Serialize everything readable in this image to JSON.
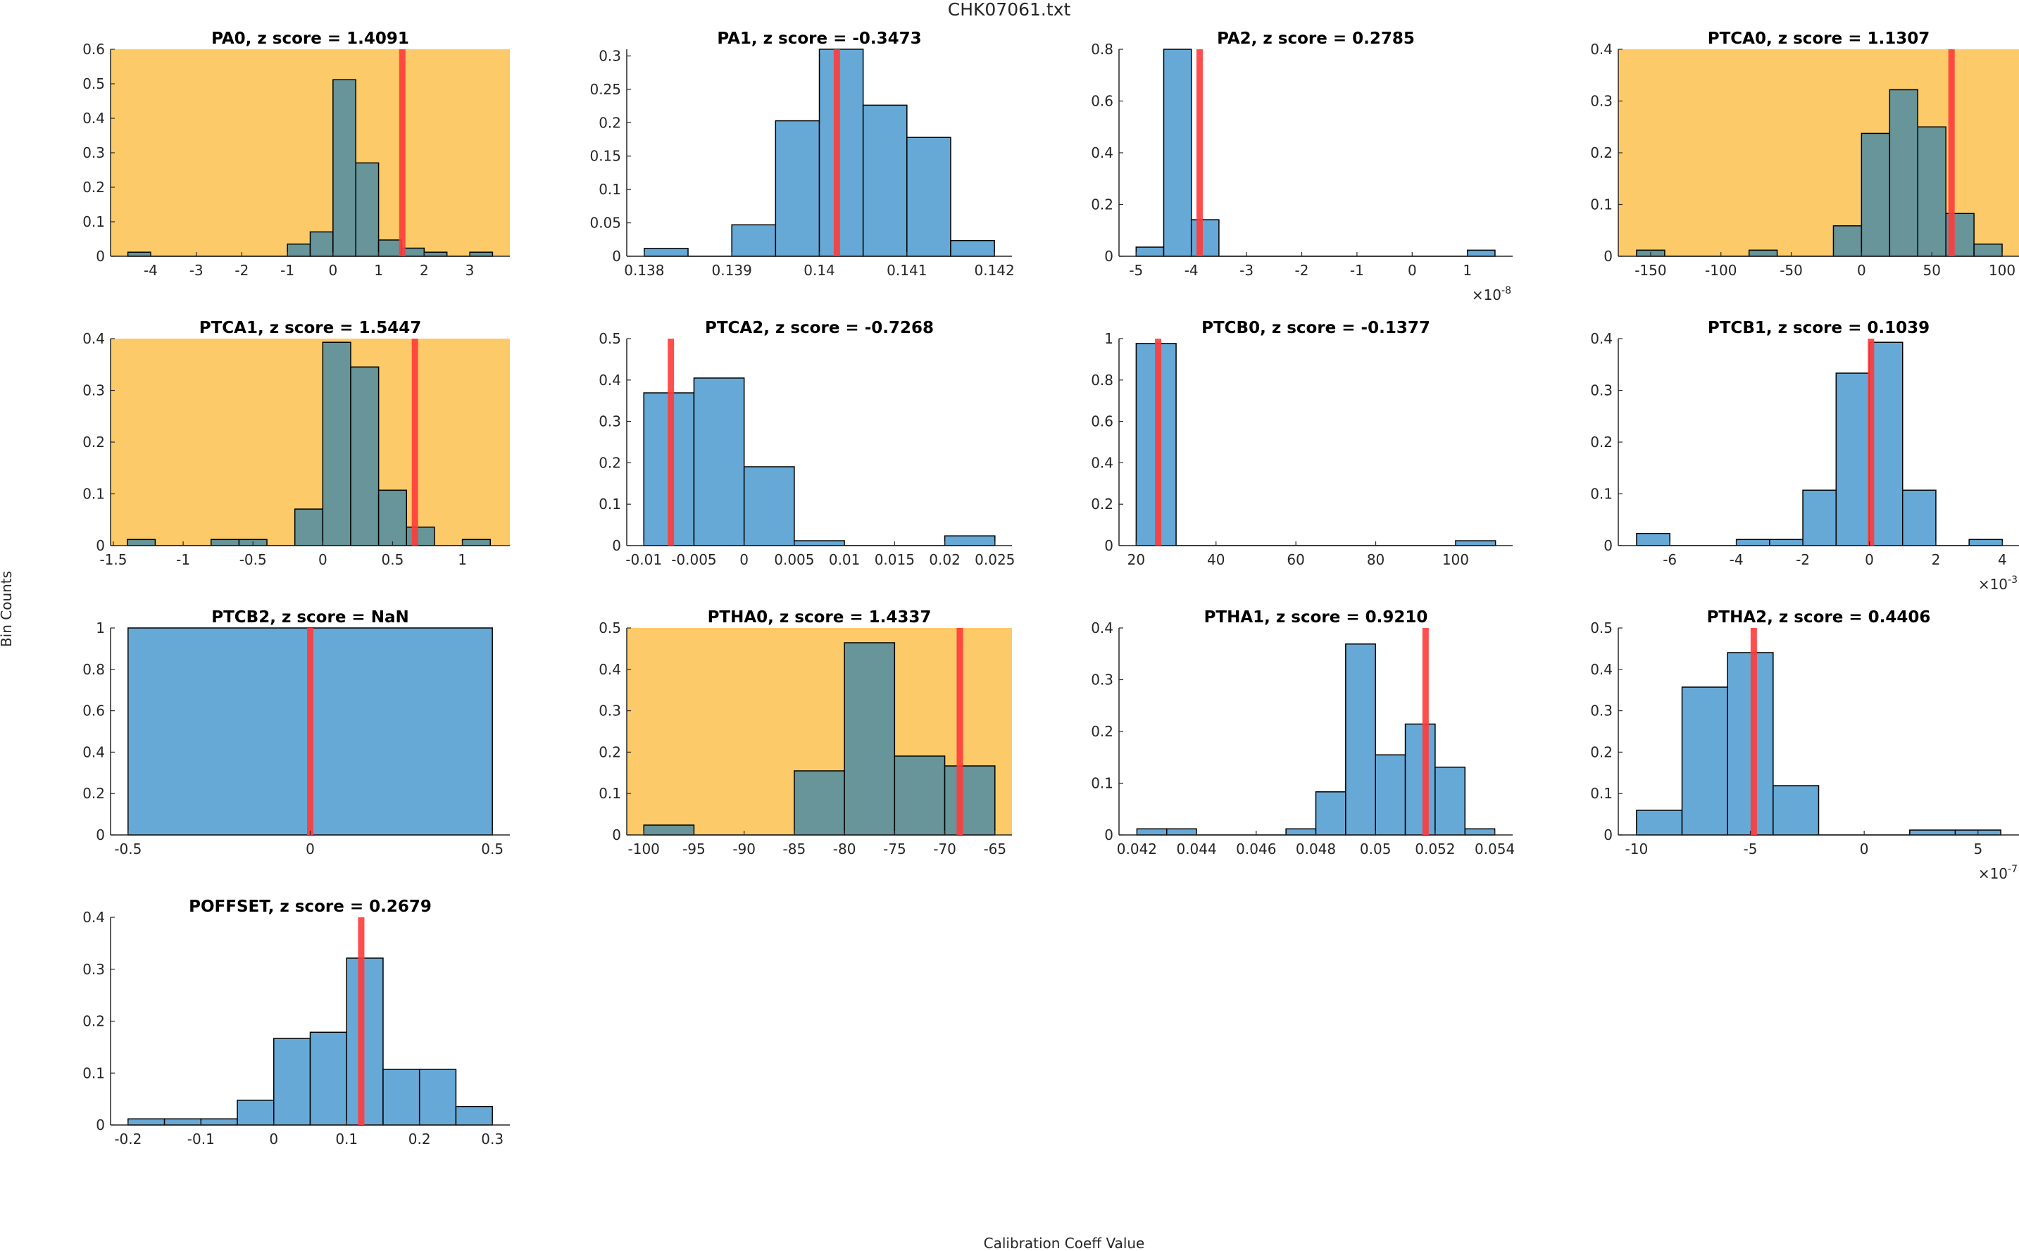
{
  "figure": {
    "title": "CHK07061.txt",
    "ylabel": "Bin Counts",
    "xlabel": "Calibration Coeff Value"
  },
  "colors": {
    "bar": "#67A9D6",
    "bar_on_highlight": "#679599",
    "highlight_bg": "#FDCA69",
    "marker": "#FF3B3B",
    "edge": "#000000",
    "axis": "#262626"
  },
  "chart_data": [
    {
      "type": "bar",
      "name": "PA0",
      "title": "PA0, z score = 1.4091",
      "z_score": 1.4091,
      "highlighted": true,
      "bin_start": -4.5,
      "bin_width": 0.5,
      "values": [
        0.0118,
        0,
        0,
        0,
        0,
        0,
        0,
        0.0353,
        0.0706,
        0.5118,
        0.2706,
        0.0471,
        0.0235,
        0.0118,
        0,
        0.0118
      ],
      "marker_x": 1.52,
      "xlim": [
        -4.88,
        3.88
      ],
      "ylim": [
        0,
        0.6
      ],
      "xticks": [
        -4,
        -3,
        -2,
        -1,
        0,
        1,
        2,
        3
      ],
      "xtick_labels": [
        "-4",
        "-3",
        "-2",
        "-1",
        "0",
        "1",
        "2",
        "3"
      ],
      "yticks": [
        0,
        0.1,
        0.2,
        0.3,
        0.4,
        0.5,
        0.6
      ],
      "ytick_labels": [
        "0",
        "0.1",
        "0.2",
        "0.3",
        "0.4",
        "0.5",
        "0.6"
      ],
      "exponent": ""
    },
    {
      "type": "bar",
      "name": "PA1",
      "title": "PA1, z score = -0.3473",
      "z_score": -0.3473,
      "highlighted": false,
      "bin_start": 0.138,
      "bin_width": 0.0005,
      "values": [
        0.0118,
        0,
        0.0471,
        0.2029,
        0.3101,
        0.2263,
        0.178,
        0.0235
      ],
      "marker_x": 0.1402,
      "xlim": [
        0.1378,
        0.1422
      ],
      "ylim": [
        0,
        0.31
      ],
      "xticks": [
        0.138,
        0.139,
        0.14,
        0.141,
        0.142
      ],
      "xtick_labels": [
        "0.138",
        "0.139",
        "0.14",
        "0.141",
        "0.142"
      ],
      "yticks": [
        0,
        0.05,
        0.1,
        0.15,
        0.2,
        0.25,
        0.3
      ],
      "ytick_labels": [
        "0",
        "0.05",
        "0.1",
        "0.15",
        "0.2",
        "0.25",
        "0.3"
      ],
      "exponent": ""
    },
    {
      "type": "bar",
      "name": "PA2",
      "title": "PA2, z score = 0.2785",
      "z_score": 0.2785,
      "highlighted": false,
      "bin_start": -5,
      "bin_width": 0.5,
      "values": [
        0.0353,
        0.8,
        0.1412,
        0,
        0,
        0,
        0,
        0,
        0,
        0,
        0,
        0,
        0.0235
      ],
      "marker_x": -3.85,
      "xlim": [
        -5.31,
        1.82
      ],
      "ylim": [
        0,
        0.8
      ],
      "xticks": [
        -5,
        -4,
        -3,
        -2,
        -1,
        0,
        1
      ],
      "xtick_labels": [
        "-5",
        "-4",
        "-3",
        "-2",
        "-1",
        "0",
        "1"
      ],
      "yticks": [
        0,
        0.2,
        0.4,
        0.6,
        0.8
      ],
      "ytick_labels": [
        "0",
        "0.2",
        "0.4",
        "0.6",
        "0.8"
      ],
      "exponent": "-8"
    },
    {
      "type": "bar",
      "name": "PTCA0",
      "title": "PTCA0, z score = 1.1307",
      "z_score": 1.1307,
      "highlighted": true,
      "bin_start": -160,
      "bin_width": 20,
      "values": [
        0.0118,
        0,
        0,
        0,
        0.0118,
        0,
        0,
        0.0588,
        0.2375,
        0.3218,
        0.25,
        0.0826,
        0.0235
      ],
      "marker_x": 64,
      "xlim": [
        -173,
        112
      ],
      "ylim": [
        0,
        0.4
      ],
      "xticks": [
        -150,
        -100,
        -50,
        0,
        50,
        100
      ],
      "xtick_labels": [
        "-150",
        "-100",
        "-50",
        "0",
        "50",
        "100"
      ],
      "yticks": [
        0,
        0.1,
        0.2,
        0.3,
        0.4
      ],
      "ytick_labels": [
        "0",
        "0.1",
        "0.2",
        "0.3",
        "0.4"
      ],
      "exponent": ""
    },
    {
      "type": "bar",
      "name": "PTCA1",
      "title": "PTCA1, z score = 1.5447",
      "z_score": 1.5447,
      "highlighted": true,
      "bin_start": -1.4,
      "bin_width": 0.2,
      "values": [
        0.0118,
        0,
        0,
        0.0118,
        0.0118,
        0,
        0.0706,
        0.3929,
        0.3452,
        0.1071,
        0.0357,
        0,
        0.0118
      ],
      "marker_x": 0.66,
      "xlim": [
        -1.52,
        1.34
      ],
      "ylim": [
        0,
        0.4
      ],
      "xticks": [
        -1.5,
        -1,
        -0.5,
        0,
        0.5,
        1
      ],
      "xtick_labels": [
        "-1.5",
        "-1",
        "-0.5",
        "0",
        "0.5",
        "1"
      ],
      "yticks": [
        0,
        0.1,
        0.2,
        0.3,
        0.4
      ],
      "ytick_labels": [
        "0",
        "0.1",
        "0.2",
        "0.3",
        "0.4"
      ],
      "exponent": ""
    },
    {
      "type": "bar",
      "name": "PTCA2",
      "title": "PTCA2, z score = -0.7268",
      "z_score": -0.7268,
      "highlighted": false,
      "bin_start": -0.01,
      "bin_width": 0.005,
      "values": [
        0.369,
        0.4048,
        0.1905,
        0.0118,
        0,
        0,
        0.0235
      ],
      "marker_x": -0.0073,
      "xlim": [
        -0.0117,
        0.0267
      ],
      "ylim": [
        0,
        0.5
      ],
      "xticks": [
        -0.01,
        -0.005,
        0,
        0.005,
        0.01,
        0.015,
        0.02,
        0.025
      ],
      "xtick_labels": [
        "-0.01",
        "-0.005",
        "0",
        "0.005",
        "0.01",
        "0.015",
        "0.02",
        "0.025"
      ],
      "yticks": [
        0,
        0.1,
        0.2,
        0.3,
        0.4,
        0.5
      ],
      "ytick_labels": [
        "0",
        "0.1",
        "0.2",
        "0.3",
        "0.4",
        "0.5"
      ],
      "exponent": ""
    },
    {
      "type": "bar",
      "name": "PTCB0",
      "title": "PTCB0, z score = -0.1377",
      "z_score": -0.1377,
      "highlighted": false,
      "bin_start": 20,
      "bin_width": 10,
      "values": [
        0.9765,
        0,
        0,
        0,
        0,
        0,
        0,
        0,
        0.0235
      ],
      "marker_x": 25.5,
      "xlim": [
        15.7,
        114.3
      ],
      "ylim": [
        0,
        1
      ],
      "xticks": [
        20,
        40,
        60,
        80,
        100
      ],
      "xtick_labels": [
        "20",
        "40",
        "60",
        "80",
        "100"
      ],
      "yticks": [
        0,
        0.2,
        0.4,
        0.6,
        0.8,
        1
      ],
      "ytick_labels": [
        "0",
        "0.2",
        "0.4",
        "0.6",
        "0.8",
        "1"
      ],
      "exponent": ""
    },
    {
      "type": "bar",
      "name": "PTCB1",
      "title": "PTCB1, z score = 0.1039",
      "z_score": 0.1039,
      "highlighted": false,
      "bin_start": -7,
      "bin_width": 1,
      "values": [
        0.0235,
        0,
        0,
        0.0118,
        0.0118,
        0.1071,
        0.3333,
        0.3929,
        0.1071,
        0,
        0.0118
      ],
      "marker_x": 0.05,
      "xlim": [
        -7.55,
        4.5
      ],
      "ylim": [
        0,
        0.4
      ],
      "xticks": [
        -6,
        -4,
        -2,
        0,
        2,
        4
      ],
      "xtick_labels": [
        "-6",
        "-4",
        "-2",
        "0",
        "2",
        "4"
      ],
      "yticks": [
        0,
        0.1,
        0.2,
        0.3,
        0.4
      ],
      "ytick_labels": [
        "0",
        "0.1",
        "0.2",
        "0.3",
        "0.4"
      ],
      "exponent": "-3"
    },
    {
      "type": "bar",
      "name": "PTCB2",
      "title": "PTCB2, z score = NaN",
      "z_score": "NaN",
      "highlighted": false,
      "bin_start": -0.5,
      "bin_width": 1,
      "values": [
        1.0
      ],
      "marker_x": 0,
      "xlim": [
        -0.548,
        0.548
      ],
      "ylim": [
        0,
        1
      ],
      "xticks": [
        -0.5,
        0,
        0.5
      ],
      "xtick_labels": [
        "-0.5",
        "0",
        "0.5"
      ],
      "yticks": [
        0,
        0.2,
        0.4,
        0.6,
        0.8,
        1
      ],
      "ytick_labels": [
        "0",
        "0.2",
        "0.4",
        "0.6",
        "0.8",
        "1"
      ],
      "exponent": ""
    },
    {
      "type": "bar",
      "name": "PTHA0",
      "title": "PTHA0, z score = 1.4337",
      "z_score": 1.4337,
      "highlighted": true,
      "bin_start": -100,
      "bin_width": 5,
      "values": [
        0.0238,
        0,
        0,
        0.1548,
        0.4643,
        0.1905,
        0.1667
      ],
      "marker_x": -68.5,
      "xlim": [
        -101.7,
        -63.3
      ],
      "ylim": [
        0,
        0.5
      ],
      "xticks": [
        -100,
        -95,
        -90,
        -85,
        -80,
        -75,
        -70,
        -65
      ],
      "xtick_labels": [
        "-100",
        "-95",
        "-90",
        "-85",
        "-80",
        "-75",
        "-70",
        "-65"
      ],
      "yticks": [
        0,
        0.1,
        0.2,
        0.3,
        0.4,
        0.5
      ],
      "ytick_labels": [
        "0",
        "0.1",
        "0.2",
        "0.3",
        "0.4",
        "0.5"
      ],
      "exponent": ""
    },
    {
      "type": "bar",
      "name": "PTHA1",
      "title": "PTHA1, z score = 0.9210",
      "z_score": 0.921,
      "highlighted": false,
      "bin_start": 0.042,
      "bin_width": 0.001,
      "values": [
        0.0118,
        0.0118,
        0,
        0,
        0,
        0.0118,
        0.0833,
        0.369,
        0.1548,
        0.2143,
        0.131,
        0.0118
      ],
      "marker_x": 0.05168,
      "xlim": [
        0.0414,
        0.0546
      ],
      "ylim": [
        0,
        0.4
      ],
      "xticks": [
        0.042,
        0.044,
        0.046,
        0.048,
        0.05,
        0.052,
        0.054
      ],
      "xtick_labels": [
        "0.042",
        "0.044",
        "0.046",
        "0.048",
        "0.05",
        "0.052",
        "0.054"
      ],
      "yticks": [
        0,
        0.1,
        0.2,
        0.3,
        0.4
      ],
      "ytick_labels": [
        "0",
        "0.1",
        "0.2",
        "0.3",
        "0.4"
      ],
      "exponent": ""
    },
    {
      "type": "bar",
      "name": "PTHA2",
      "title": "PTHA2, z score = 0.4406",
      "z_score": 0.4406,
      "highlighted": false,
      "bin_start": -10,
      "bin_width": 2,
      "values": [
        0.0595,
        0.3571,
        0.4405,
        0.119,
        0,
        0,
        0.0118,
        0.0118
      ],
      "marker_x": -4.85,
      "xlim": [
        -10.8,
        6.8
      ],
      "ylim": [
        0,
        0.5
      ],
      "xticks": [
        -10,
        -5,
        0,
        5
      ],
      "xtick_labels": [
        "-10",
        "-5",
        "0",
        "5"
      ],
      "yticks": [
        0,
        0.1,
        0.2,
        0.3,
        0.4,
        0.5
      ],
      "ytick_labels": [
        "0",
        "0.1",
        "0.2",
        "0.3",
        "0.4",
        "0.5"
      ],
      "exponent": "-7"
    },
    {
      "type": "bar",
      "name": "POFFSET",
      "title": "POFFSET, z score = 0.2679",
      "z_score": 0.2679,
      "highlighted": false,
      "bin_start": -0.2,
      "bin_width": 0.05,
      "values": [
        0.0118,
        0.0118,
        0.0118,
        0.0476,
        0.1667,
        0.1786,
        0.3214,
        0.1071,
        0.1071,
        0.0357
      ],
      "marker_x": 0.12,
      "xlim": [
        -0.224,
        0.324
      ],
      "ylim": [
        0,
        0.4
      ],
      "xticks": [
        -0.2,
        -0.1,
        0,
        0.1,
        0.2,
        0.3
      ],
      "xtick_labels": [
        "-0.2",
        "-0.1",
        "0",
        "0.1",
        "0.2",
        "0.3"
      ],
      "yticks": [
        0,
        0.1,
        0.2,
        0.3,
        0.4
      ],
      "ytick_labels": [
        "0",
        "0.1",
        "0.2",
        "0.3",
        "0.4"
      ],
      "exponent": ""
    }
  ]
}
